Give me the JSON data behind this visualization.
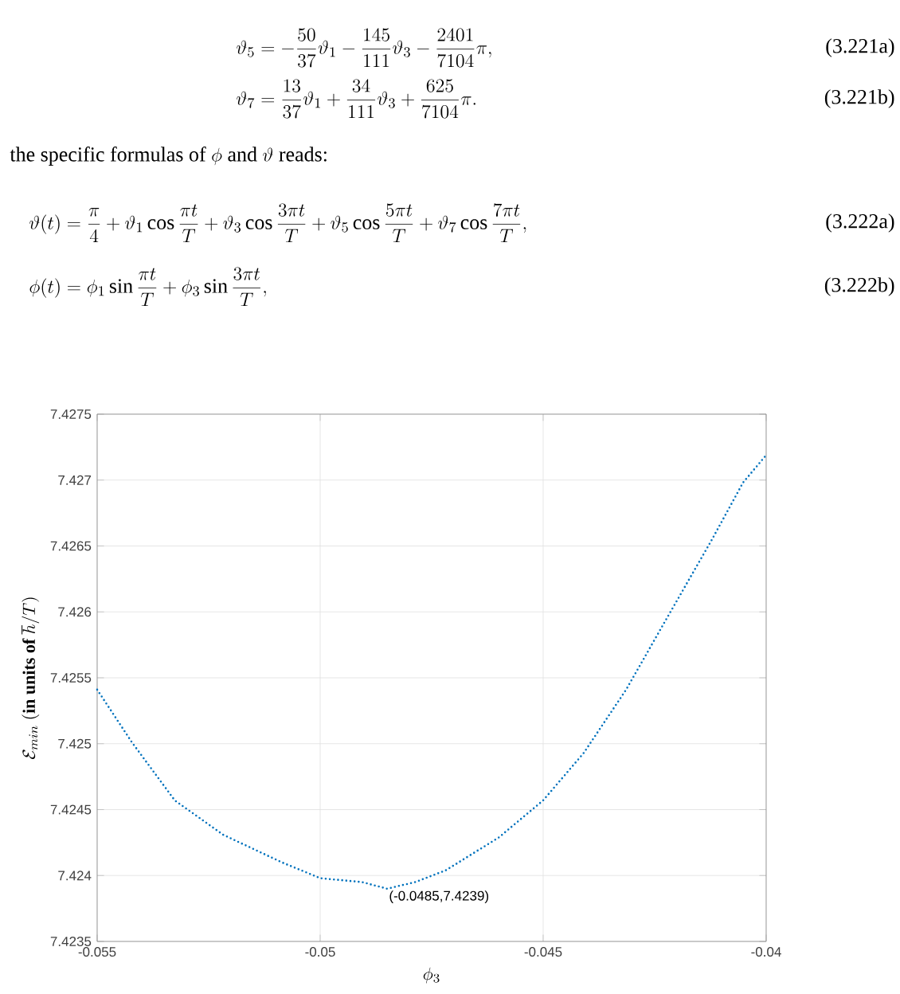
{
  "chart_data": {
    "type": "line",
    "xlabel": "\\phi_3",
    "ylabel": "\\mathcal{E}_{min}\\ \\mathbf{(in\\ units\\ of\\ }\\hbar/T\\mathbf{)}",
    "x": [
      -0.055,
      -0.05422,
      -0.05326,
      -0.05218,
      -0.05086,
      -0.05,
      -0.04906,
      -0.0485,
      -0.04787,
      -0.04718,
      -0.04599,
      -0.045,
      -0.04409,
      -0.04314,
      -0.04218,
      -0.04123,
      -0.04052,
      -0.04
    ],
    "series": [
      {
        "color": "#0072bd",
        "values": [
          7.42541,
          7.42501,
          7.42457,
          7.42431,
          7.4241,
          7.42398,
          7.42395,
          7.4239,
          7.42395,
          7.42404,
          7.42429,
          7.42457,
          7.42493,
          7.42541,
          7.42598,
          7.42654,
          7.42698,
          7.42719
        ]
      }
    ],
    "line_style": "dotted",
    "xlim": [
      -0.055,
      -0.04
    ],
    "ylim": [
      7.4235,
      7.4275
    ],
    "xticks": [
      -0.055,
      -0.05,
      -0.045,
      -0.04
    ],
    "yticks": [
      7.4235,
      7.424,
      7.4245,
      7.425,
      7.4255,
      7.426,
      7.4265,
      7.427,
      7.4275
    ],
    "grid": true,
    "annotations": [
      "\\vartheta_5 = -\\frac{50}{37}\\vartheta_1 - \\frac{145}{111}\\vartheta_3 - \\frac{2401}{7104}\\pi,",
      "(3.221a)",
      "\\vartheta_7 = \\frac{13}{37}\\vartheta_1 + \\frac{34}{111}\\vartheta_3 + \\frac{625}{7104}\\pi.",
      "(3.221b)",
      "\\mbox{the specific formulas of } \\phi \\mbox{ and } \\vartheta \\mbox{ reads:}",
      "\\vartheta(t) = \\frac{\\pi}{4} + \\vartheta_1\\cos\\frac{\\pi t}{T} + \\vartheta_3\\cos\\frac{3\\pi t}{T} + \\vartheta_5\\cos\\frac{5\\pi t}{T} + \\vartheta_7\\cos\\frac{7\\pi t}{T},",
      "(3.222a)",
      "\\phi(t) = \\phi_1\\sin\\frac{\\pi t}{T} + \\phi_3\\sin\\frac{3\\pi t}{T},",
      "(3.222b)",
      {
        "text": "(-0.0485,7.4239)",
        "x": -0.0485,
        "y": 7.4239
      }
    ]
  }
}
